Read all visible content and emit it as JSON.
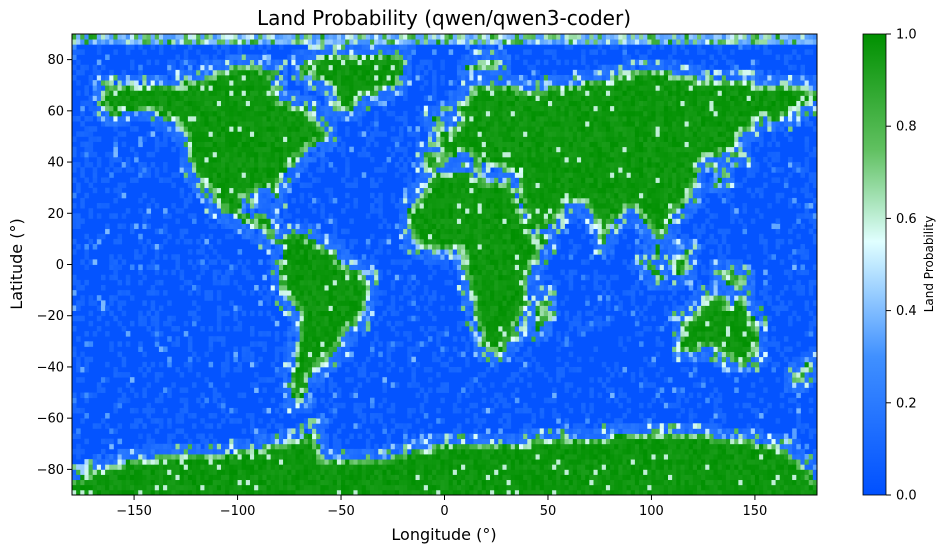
{
  "chart_data": {
    "type": "heatmap",
    "title": "Land Probability (qwen/qwen3-coder)",
    "xlabel": "Longitude (°)",
    "ylabel": "Latitude (°)",
    "xlim": [
      -180,
      180
    ],
    "ylim": [
      -90,
      90
    ],
    "x_ticks": [
      -150,
      -100,
      -50,
      0,
      50,
      100,
      150
    ],
    "x_tick_labels": [
      "−150",
      "−100",
      "−50",
      "0",
      "50",
      "100",
      "150"
    ],
    "y_ticks": [
      -80,
      -60,
      -40,
      -20,
      0,
      20,
      40,
      60,
      80
    ],
    "y_tick_labels": [
      "−80",
      "−60",
      "−40",
      "−20",
      "0",
      "20",
      "40",
      "60",
      "80"
    ],
    "grid_resolution_deg": 2,
    "colorbar": {
      "label": "Land Probability",
      "range": [
        0,
        1
      ],
      "ticks": [
        0.0,
        0.2,
        0.4,
        0.6,
        0.8,
        1.0
      ],
      "tick_labels": [
        "0.0",
        "0.2",
        "0.4",
        "0.6",
        "0.8",
        "1.0"
      ],
      "colors": [
        "#0050ff",
        "#e0ffff",
        "#009000"
      ]
    },
    "land_regions_lonlat": [
      {
        "name": "North America",
        "points": [
          [
            -165,
            68
          ],
          [
            -160,
            71
          ],
          [
            -140,
            70
          ],
          [
            -125,
            71
          ],
          [
            -100,
            73
          ],
          [
            -85,
            70
          ],
          [
            -78,
            64
          ],
          [
            -65,
            61
          ],
          [
            -60,
            55
          ],
          [
            -55,
            50
          ],
          [
            -66,
            45
          ],
          [
            -70,
            42
          ],
          [
            -76,
            38
          ],
          [
            -80,
            32
          ],
          [
            -81,
            26
          ],
          [
            -80,
            25
          ],
          [
            -85,
            30
          ],
          [
            -90,
            29
          ],
          [
            -97,
            26
          ],
          [
            -97,
            21
          ],
          [
            -93,
            18
          ],
          [
            -87,
            21
          ],
          [
            -84,
            15
          ],
          [
            -80,
            9
          ],
          [
            -78,
            8
          ],
          [
            -83,
            9
          ],
          [
            -88,
            13
          ],
          [
            -95,
            15
          ],
          [
            -105,
            20
          ],
          [
            -110,
            23
          ],
          [
            -115,
            30
          ],
          [
            -118,
            34
          ],
          [
            -122,
            37
          ],
          [
            -124,
            42
          ],
          [
            -124,
            48
          ],
          [
            -130,
            55
          ],
          [
            -140,
            60
          ],
          [
            -150,
            60
          ],
          [
            -160,
            58
          ],
          [
            -165,
            62
          ]
        ]
      },
      {
        "name": "Greenland",
        "points": [
          [
            -55,
            60
          ],
          [
            -45,
            60
          ],
          [
            -40,
            65
          ],
          [
            -25,
            70
          ],
          [
            -20,
            76
          ],
          [
            -20,
            82
          ],
          [
            -40,
            83
          ],
          [
            -60,
            82
          ],
          [
            -70,
            78
          ],
          [
            -68,
            74
          ],
          [
            -55,
            70
          ],
          [
            -52,
            65
          ]
        ]
      },
      {
        "name": "South America",
        "points": [
          [
            -80,
            10
          ],
          [
            -75,
            12
          ],
          [
            -65,
            11
          ],
          [
            -60,
            8
          ],
          [
            -52,
            5
          ],
          [
            -50,
            0
          ],
          [
            -40,
            -3
          ],
          [
            -35,
            -7
          ],
          [
            -38,
            -14
          ],
          [
            -40,
            -22
          ],
          [
            -48,
            -26
          ],
          [
            -52,
            -33
          ],
          [
            -58,
            -38
          ],
          [
            -64,
            -42
          ],
          [
            -67,
            -50
          ],
          [
            -70,
            -55
          ],
          [
            -74,
            -50
          ],
          [
            -73,
            -40
          ],
          [
            -71,
            -30
          ],
          [
            -70,
            -18
          ],
          [
            -76,
            -14
          ],
          [
            -80,
            -6
          ],
          [
            -81,
            -2
          ],
          [
            -79,
            2
          ],
          [
            -78,
            7
          ]
        ]
      },
      {
        "name": "Europe and Asia",
        "points": [
          [
            -10,
            36
          ],
          [
            -9,
            43
          ],
          [
            -2,
            44
          ],
          [
            -5,
            48
          ],
          [
            0,
            50
          ],
          [
            5,
            53
          ],
          [
            8,
            57
          ],
          [
            5,
            62
          ],
          [
            15,
            69
          ],
          [
            25,
            71
          ],
          [
            40,
            68
          ],
          [
            60,
            70
          ],
          [
            80,
            73
          ],
          [
            100,
            77
          ],
          [
            115,
            74
          ],
          [
            130,
            72
          ],
          [
            150,
            71
          ],
          [
            170,
            70
          ],
          [
            180,
            68
          ],
          [
            180,
            64
          ],
          [
            170,
            60
          ],
          [
            160,
            55
          ],
          [
            155,
            58
          ],
          [
            143,
            50
          ],
          [
            140,
            45
          ],
          [
            130,
            42
          ],
          [
            122,
            40
          ],
          [
            121,
            31
          ],
          [
            118,
            24
          ],
          [
            110,
            20
          ],
          [
            108,
            12
          ],
          [
            104,
            9
          ],
          [
            100,
            3
          ],
          [
            103,
            1
          ],
          [
            104,
            8
          ],
          [
            98,
            16
          ],
          [
            94,
            18
          ],
          [
            91,
            22
          ],
          [
            88,
            21
          ],
          [
            80,
            15
          ],
          [
            77,
            8
          ],
          [
            73,
            15
          ],
          [
            70,
            22
          ],
          [
            62,
            25
          ],
          [
            57,
            25
          ],
          [
            55,
            17
          ],
          [
            45,
            12
          ],
          [
            43,
            13
          ],
          [
            38,
            22
          ],
          [
            35,
            28
          ],
          [
            36,
            36
          ],
          [
            30,
            36
          ],
          [
            26,
            39
          ],
          [
            22,
            37
          ],
          [
            20,
            40
          ],
          [
            15,
            38
          ],
          [
            12,
            44
          ],
          [
            8,
            44
          ],
          [
            3,
            42
          ],
          [
            0,
            39
          ],
          [
            -5,
            36
          ]
        ]
      },
      {
        "name": "Africa",
        "points": [
          [
            -17,
            15
          ],
          [
            -17,
            21
          ],
          [
            -10,
            28
          ],
          [
            -6,
            35
          ],
          [
            10,
            37
          ],
          [
            20,
            32
          ],
          [
            32,
            31
          ],
          [
            34,
            28
          ],
          [
            38,
            20
          ],
          [
            43,
            12
          ],
          [
            51,
            12
          ],
          [
            45,
            2
          ],
          [
            40,
            -5
          ],
          [
            40,
            -15
          ],
          [
            35,
            -25
          ],
          [
            32,
            -29
          ],
          [
            27,
            -34
          ],
          [
            20,
            -35
          ],
          [
            18,
            -30
          ],
          [
            15,
            -20
          ],
          [
            12,
            -10
          ],
          [
            10,
            -2
          ],
          [
            9,
            4
          ],
          [
            5,
            6
          ],
          [
            -5,
            5
          ],
          [
            -10,
            6
          ],
          [
            -13,
            8
          ],
          [
            -16,
            12
          ]
        ]
      },
      {
        "name": "Arabia",
        "points": [
          [
            35,
            28
          ],
          [
            38,
            22
          ],
          [
            43,
            13
          ],
          [
            50,
            15
          ],
          [
            57,
            19
          ],
          [
            59,
            22
          ],
          [
            56,
            26
          ],
          [
            50,
            26
          ],
          [
            48,
            30
          ],
          [
            44,
            34
          ],
          [
            38,
            33
          ]
        ]
      },
      {
        "name": "Australia",
        "points": [
          [
            114,
            -22
          ],
          [
            114,
            -34
          ],
          [
            118,
            -35
          ],
          [
            128,
            -32
          ],
          [
            135,
            -35
          ],
          [
            140,
            -38
          ],
          [
            148,
            -38
          ],
          [
            152,
            -32
          ],
          [
            153,
            -26
          ],
          [
            150,
            -22
          ],
          [
            146,
            -18
          ],
          [
            145,
            -14
          ],
          [
            142,
            -11
          ],
          [
            140,
            -17
          ],
          [
            136,
            -15
          ],
          [
            136,
            -12
          ],
          [
            131,
            -11
          ],
          [
            125,
            -14
          ],
          [
            122,
            -18
          ]
        ]
      },
      {
        "name": "Madagascar",
        "points": [
          [
            44,
            -25
          ],
          [
            47,
            -25
          ],
          [
            50,
            -15
          ],
          [
            49,
            -12
          ],
          [
            44,
            -17
          ]
        ]
      },
      {
        "name": "Borneo",
        "points": [
          [
            109,
            1
          ],
          [
            110,
            -3
          ],
          [
            116,
            -4
          ],
          [
            119,
            0
          ],
          [
            117,
            6
          ],
          [
            114,
            4
          ]
        ]
      },
      {
        "name": "Sumatra",
        "points": [
          [
            95,
            5
          ],
          [
            98,
            4
          ],
          [
            106,
            -5
          ],
          [
            102,
            -5
          ],
          [
            98,
            0
          ]
        ]
      },
      {
        "name": "New Guinea",
        "points": [
          [
            131,
            -1
          ],
          [
            141,
            -3
          ],
          [
            150,
            -10
          ],
          [
            145,
            -8
          ],
          [
            138,
            -8
          ],
          [
            132,
            -4
          ]
        ]
      },
      {
        "name": "Japan",
        "points": [
          [
            130,
            31
          ],
          [
            135,
            34
          ],
          [
            141,
            41
          ],
          [
            145,
            44
          ],
          [
            141,
            45
          ],
          [
            139,
            38
          ],
          [
            132,
            34
          ]
        ]
      },
      {
        "name": "New Zealand",
        "points": [
          [
            167,
            -46
          ],
          [
            172,
            -41
          ],
          [
            175,
            -37
          ],
          [
            178,
            -38
          ],
          [
            175,
            -42
          ],
          [
            170,
            -46
          ]
        ]
      },
      {
        "name": "UK",
        "points": [
          [
            -5,
            50
          ],
          [
            1,
            51
          ],
          [
            0,
            54
          ],
          [
            -3,
            58
          ],
          [
            -6,
            57
          ],
          [
            -4,
            53
          ]
        ]
      },
      {
        "name": "Arctic Islands",
        "points": [
          [
            -120,
            70
          ],
          [
            -110,
            76
          ],
          [
            -95,
            78
          ],
          [
            -80,
            76
          ],
          [
            -85,
            70
          ],
          [
            -100,
            70
          ]
        ]
      },
      {
        "name": "Svalbard",
        "points": [
          [
            10,
            77
          ],
          [
            20,
            80
          ],
          [
            28,
            80
          ],
          [
            25,
            76
          ],
          [
            15,
            76
          ]
        ]
      },
      {
        "name": "Antarctica",
        "points": [
          [
            -180,
            -84
          ],
          [
            -180,
            -90
          ],
          [
            180,
            -90
          ],
          [
            180,
            -84
          ],
          [
            170,
            -76
          ],
          [
            160,
            -70
          ],
          [
            120,
            -66
          ],
          [
            80,
            -67
          ],
          [
            40,
            -69
          ],
          [
            0,
            -70
          ],
          [
            -30,
            -76
          ],
          [
            -60,
            -75
          ],
          [
            -62,
            -64
          ],
          [
            -70,
            -68
          ],
          [
            -100,
            -73
          ],
          [
            -140,
            -75
          ],
          [
            -160,
            -78
          ]
        ]
      }
    ]
  }
}
